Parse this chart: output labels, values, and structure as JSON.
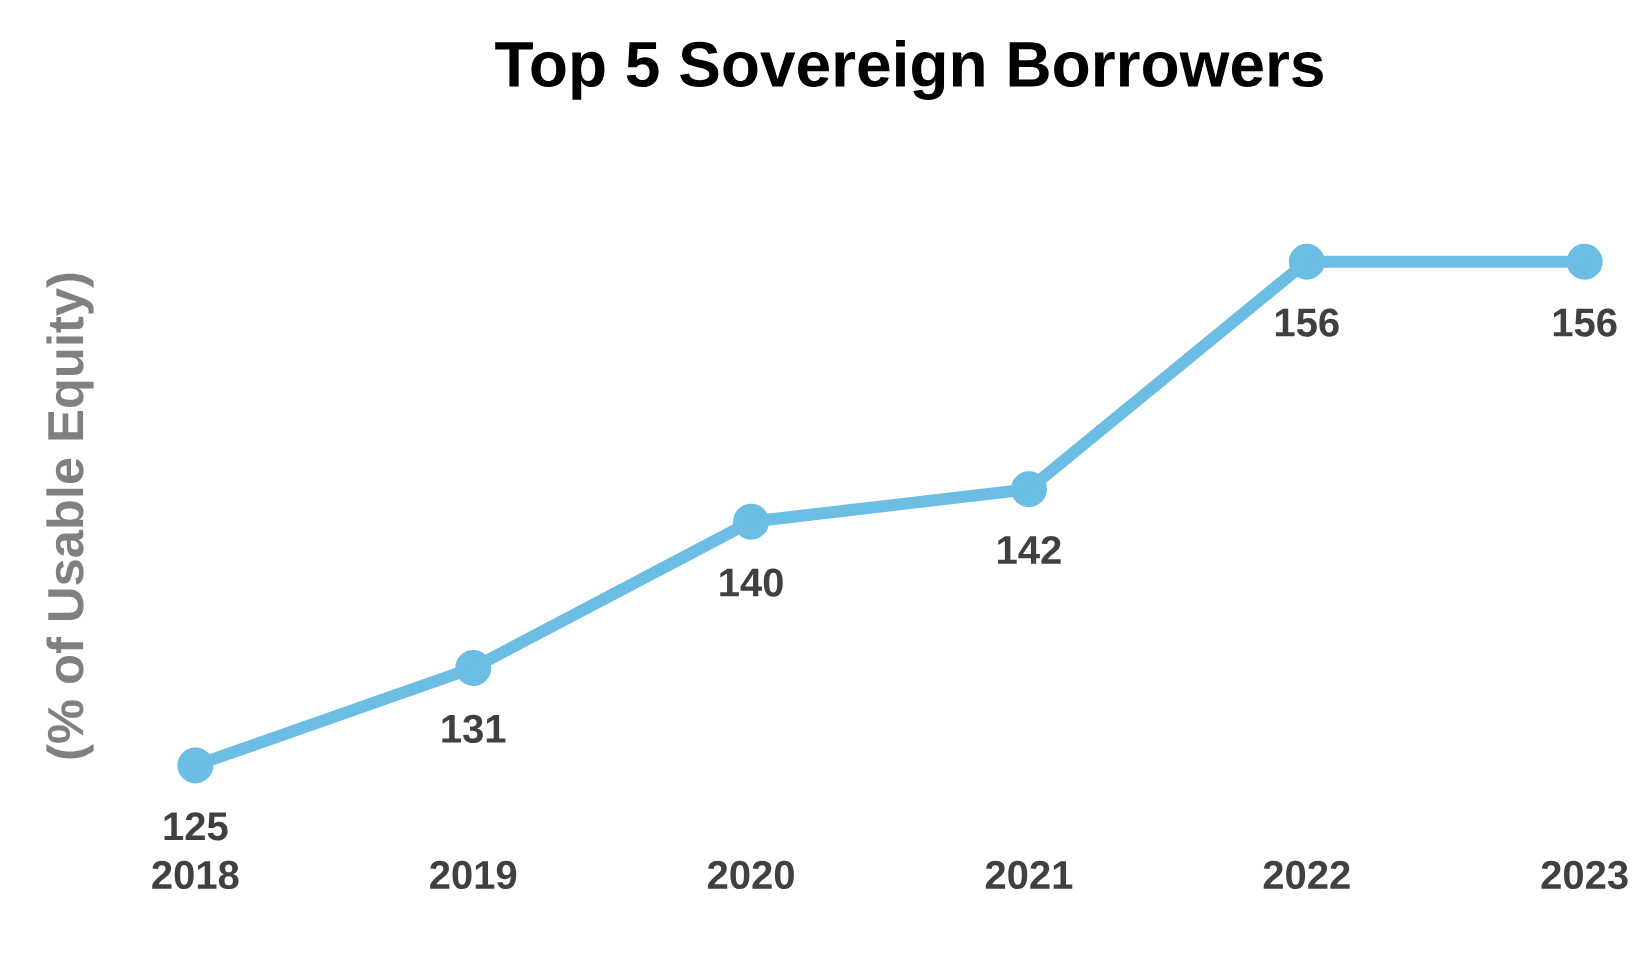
{
  "chart_data": {
    "type": "line",
    "title": "Top 5 Sovereign Borrowers",
    "ylabel": "(% of Usable Equity)",
    "categories": [
      "2018",
      "2019",
      "2020",
      "2021",
      "2022",
      "2023"
    ],
    "series": [
      {
        "color": "#6cbde4",
        "values": [
          125,
          131,
          140,
          142,
          156,
          156
        ]
      }
    ],
    "data_labels": true,
    "marker": "circle",
    "line_style": "solid"
  }
}
